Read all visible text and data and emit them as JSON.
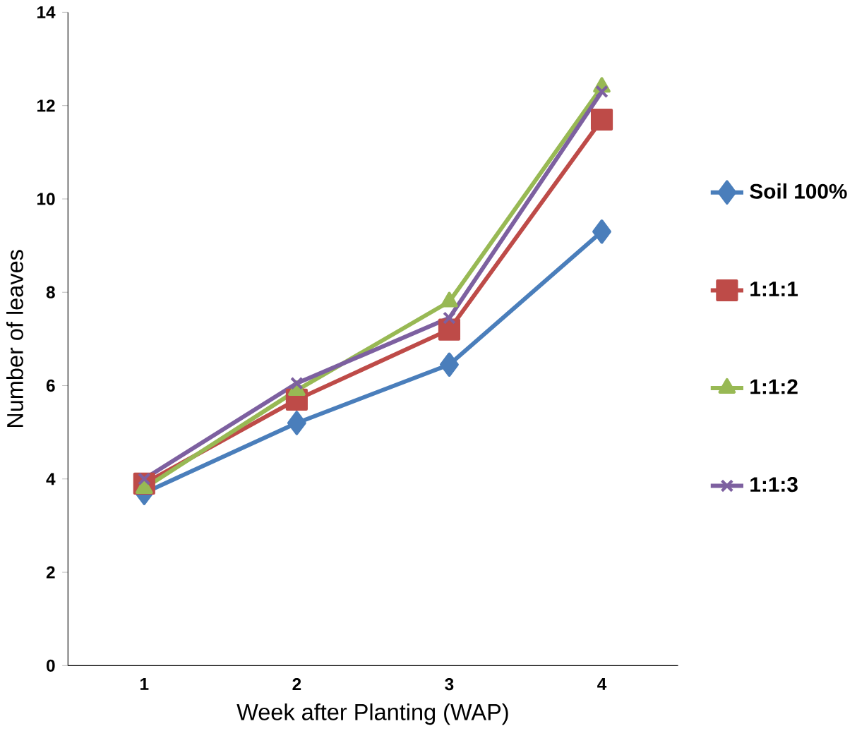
{
  "chart_data": {
    "type": "line",
    "xlabel": "Week after Planting (WAP)",
    "ylabel": "Number of leaves",
    "categories": [
      "1",
      "2",
      "3",
      "4"
    ],
    "series": [
      {
        "name": "Soil 100%",
        "color": "#4a7ebb",
        "marker": "diamond",
        "values": [
          3.7,
          5.2,
          6.45,
          9.3
        ]
      },
      {
        "name": "1:1:1",
        "color": "#be4b48",
        "marker": "square",
        "values": [
          3.9,
          5.7,
          7.2,
          11.7
        ]
      },
      {
        "name": "1:1:2",
        "color": "#98b954",
        "marker": "triangle",
        "values": [
          3.8,
          5.9,
          7.8,
          12.4
        ]
      },
      {
        "name": "1:1:3",
        "color": "#7d60a0",
        "marker": "cross",
        "values": [
          4.0,
          6.05,
          7.45,
          12.3
        ]
      }
    ],
    "ylim": [
      0,
      14
    ],
    "yticks": [
      0,
      2,
      4,
      6,
      8,
      10,
      12,
      14
    ],
    "grid": false,
    "legend": "right"
  }
}
